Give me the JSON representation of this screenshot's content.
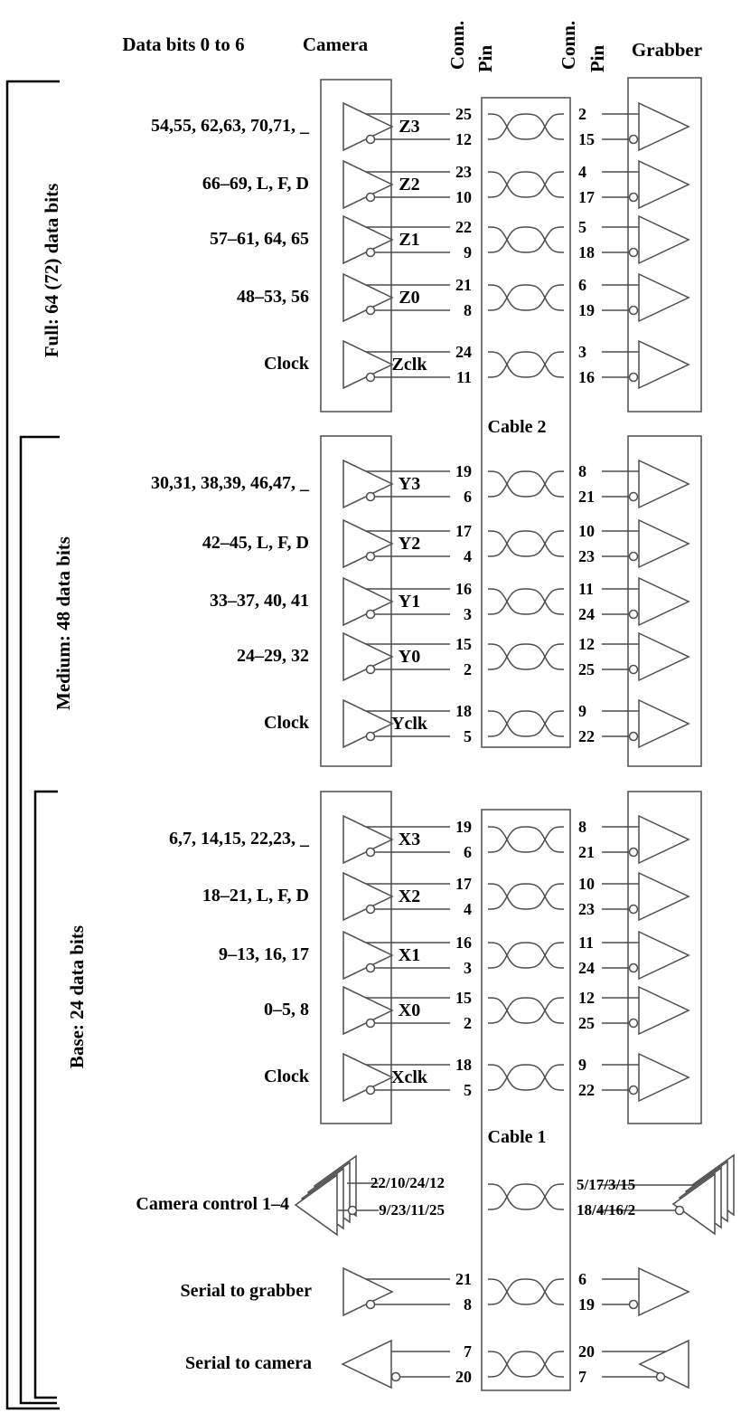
{
  "header": {
    "data_bits": "Data bits 0 to 6",
    "camera": "Camera",
    "conn_left": "Conn.",
    "pin_left": "Pin",
    "conn_right": "Conn.",
    "pin_right": "Pin",
    "grabber": "Grabber"
  },
  "groups": [
    {
      "bracket_label": "Full: 64 (72) data bits",
      "rows": [
        {
          "label": "54,55, 62,63, 70,71, _",
          "signal": "Z3",
          "camera_pins": [
            "25",
            "12"
          ],
          "grabber_pins": [
            "2",
            "15"
          ]
        },
        {
          "label": "66–69, L, F, D",
          "signal": "Z2",
          "camera_pins": [
            "23",
            "10"
          ],
          "grabber_pins": [
            "4",
            "17"
          ]
        },
        {
          "label": "57–61, 64, 65",
          "signal": "Z1",
          "camera_pins": [
            "22",
            "9"
          ],
          "grabber_pins": [
            "5",
            "18"
          ]
        },
        {
          "label": "48–53, 56",
          "signal": "Z0",
          "camera_pins": [
            "21",
            "8"
          ],
          "grabber_pins": [
            "6",
            "19"
          ]
        },
        {
          "label": "Clock",
          "signal": "Zclk",
          "camera_pins": [
            "24",
            "11"
          ],
          "grabber_pins": [
            "3",
            "16"
          ]
        }
      ]
    },
    {
      "bracket_label": "Medium: 48 data bits",
      "rows": [
        {
          "label": "30,31, 38,39, 46,47, _",
          "signal": "Y3",
          "camera_pins": [
            "19",
            "6"
          ],
          "grabber_pins": [
            "8",
            "21"
          ]
        },
        {
          "label": "42–45, L, F, D",
          "signal": "Y2",
          "camera_pins": [
            "17",
            "4"
          ],
          "grabber_pins": [
            "10",
            "23"
          ]
        },
        {
          "label": "33–37, 40, 41",
          "signal": "Y1",
          "camera_pins": [
            "16",
            "3"
          ],
          "grabber_pins": [
            "11",
            "24"
          ]
        },
        {
          "label": "24–29, 32",
          "signal": "Y0",
          "camera_pins": [
            "15",
            "2"
          ],
          "grabber_pins": [
            "12",
            "25"
          ]
        },
        {
          "label": "Clock",
          "signal": "Yclk",
          "camera_pins": [
            "18",
            "5"
          ],
          "grabber_pins": [
            "9",
            "22"
          ]
        }
      ]
    },
    {
      "bracket_label": "Base: 24 data bits",
      "rows": [
        {
          "label": "6,7, 14,15, 22,23, _",
          "signal": "X3",
          "camera_pins": [
            "19",
            "6"
          ],
          "grabber_pins": [
            "8",
            "21"
          ]
        },
        {
          "label": "18–21, L, F, D",
          "signal": "X2",
          "camera_pins": [
            "17",
            "4"
          ],
          "grabber_pins": [
            "10",
            "23"
          ]
        },
        {
          "label": "9–13, 16, 17",
          "signal": "X1",
          "camera_pins": [
            "16",
            "3"
          ],
          "grabber_pins": [
            "11",
            "24"
          ]
        },
        {
          "label": "0–5, 8",
          "signal": "X0",
          "camera_pins": [
            "15",
            "2"
          ],
          "grabber_pins": [
            "12",
            "25"
          ]
        },
        {
          "label": "Clock",
          "signal": "Xclk",
          "camera_pins": [
            "18",
            "5"
          ],
          "grabber_pins": [
            "9",
            "22"
          ]
        }
      ]
    }
  ],
  "cables": [
    {
      "label": "Cable 2"
    },
    {
      "label": "Cable 1"
    }
  ],
  "control_row": {
    "label": "Camera control 1–4",
    "camera_pins": [
      "22/10/24/12",
      "9/23/11/25"
    ],
    "grabber_pins": [
      "5/17/3/15",
      "18/4/16/2"
    ]
  },
  "serial_rows": [
    {
      "label": "Serial to grabber",
      "camera_pins": [
        "21",
        "8"
      ],
      "grabber_pins": [
        "6",
        "19"
      ]
    },
    {
      "label": "Serial to camera",
      "camera_pins": [
        "7",
        "20"
      ],
      "grabber_pins": [
        "20",
        "7"
      ]
    }
  ],
  "colors": {
    "line": "#4d4d4d",
    "bracket": "#000000",
    "text": "#000000",
    "background": "#ffffff"
  }
}
